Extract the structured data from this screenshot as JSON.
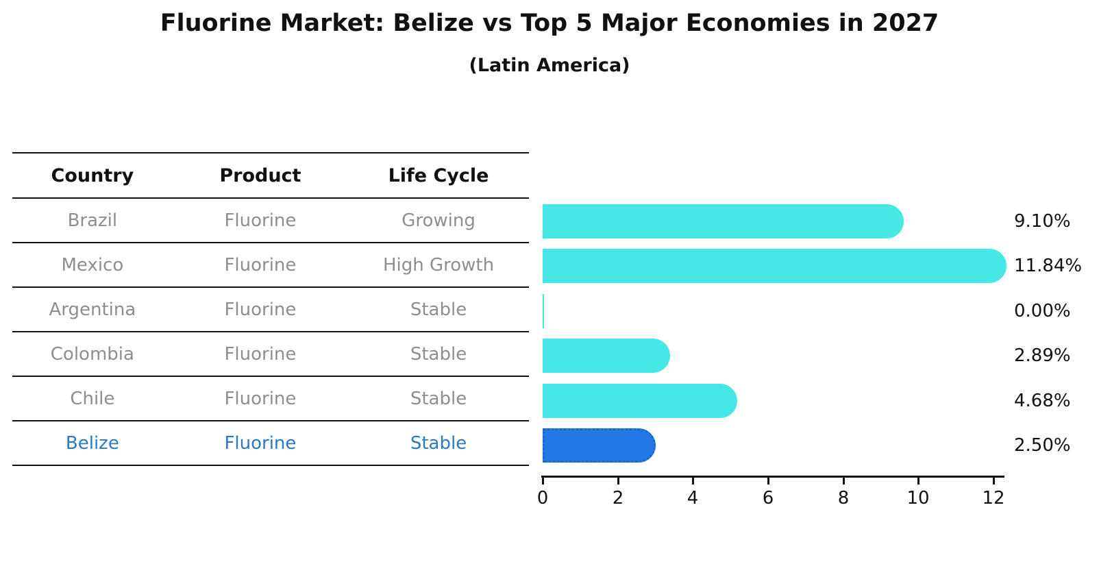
{
  "header": {
    "title": "Fluorine Market: Belize vs Top 5 Major Economies in 2027",
    "subtitle": "(Latin America)"
  },
  "table": {
    "columns": [
      "Country",
      "Product",
      "Life Cycle"
    ],
    "rows": [
      {
        "country": "Brazil",
        "product": "Fluorine",
        "life_cycle": "Growing"
      },
      {
        "country": "Mexico",
        "product": "Fluorine",
        "life_cycle": "High Growth"
      },
      {
        "country": "Argentina",
        "product": "Fluorine",
        "life_cycle": "Stable"
      },
      {
        "country": "Colombia",
        "product": "Fluorine",
        "life_cycle": "Stable"
      },
      {
        "country": "Chile",
        "product": "Fluorine",
        "life_cycle": "Stable"
      },
      {
        "country": "Belize",
        "product": "Fluorine",
        "life_cycle": "Stable"
      }
    ]
  },
  "chart_data": {
    "type": "bar",
    "orientation": "horizontal",
    "title": "Fluorine Market: Belize vs Top 5 Major Economies in 2027",
    "subtitle": "(Latin America)",
    "categories": [
      "Brazil",
      "Mexico",
      "Argentina",
      "Colombia",
      "Chile",
      "Belize"
    ],
    "values": [
      9.1,
      11.84,
      0.0,
      2.89,
      4.68,
      2.5
    ],
    "value_labels": [
      "9.10%",
      "11.84%",
      "0.00%",
      "2.89%",
      "4.68%",
      "2.50%"
    ],
    "xticks": [
      "0",
      "2",
      "4",
      "6",
      "8",
      "10",
      "12"
    ],
    "xlim": [
      0,
      12
    ],
    "grid": false,
    "legend": null,
    "bar_color": "#45e8e4",
    "highlight_color": "#2478e6",
    "highlight_border_color": "#1a66cc",
    "highlight_index": 5,
    "highlight_text_color": "#2979c8"
  }
}
